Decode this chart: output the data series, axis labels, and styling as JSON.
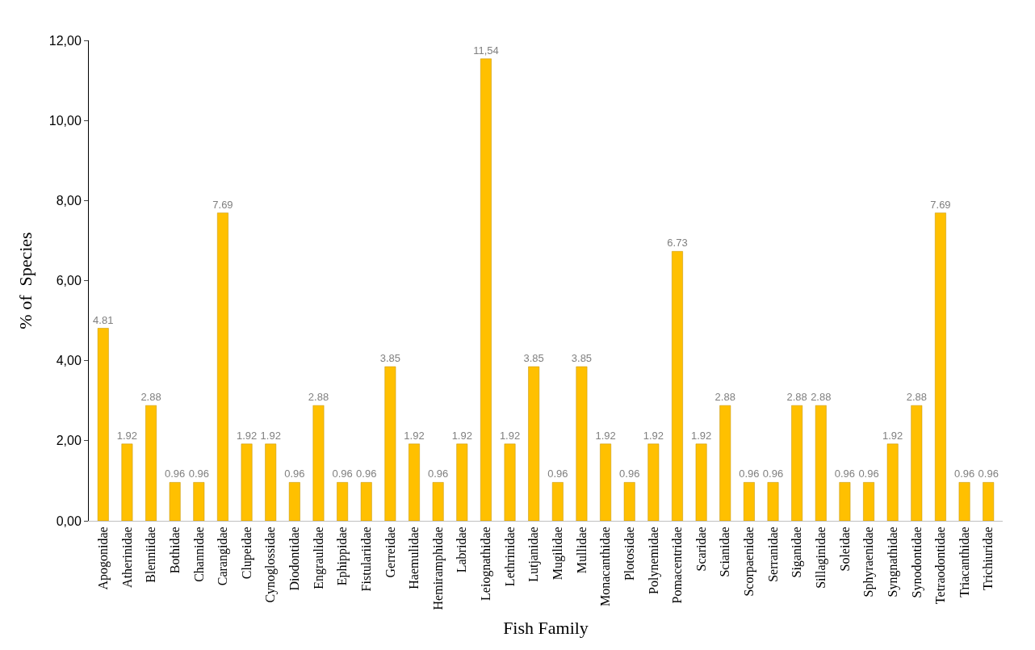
{
  "chart_data": {
    "type": "bar",
    "xlabel": "Fish Family",
    "ylabel": "% of  Species",
    "categories": [
      "Apogonidae",
      "Atherinidae",
      "Blenniidae",
      "Bothidae",
      "Channidae",
      "Carangidae",
      "Clupeidae",
      "Cynoglossidae",
      "Diodontidae",
      "Engraulidae",
      "Ephippidae",
      "Fistulariidae",
      "Gerreidae",
      "Haemulidae",
      "Hemiramphidae",
      "Labridae",
      "Leiognathidae",
      "Lethrinidae",
      "Lutjanidae",
      "Mugilidae",
      "Mullidae",
      "Monacanthidae",
      "Plotosidae",
      "Polynemidae",
      "Pomacentridae",
      "Scaridae",
      "Scianidae",
      "Scorpaenidae",
      "Serranidae",
      "Siganidae",
      "Sillaginidae",
      "Soleidae",
      "Sphyraenidae",
      "Syngnathidae",
      "Synodontidae",
      "Tetraodontidae",
      "Triacanthidae",
      "Trichiuridae"
    ],
    "values": [
      4.81,
      1.92,
      2.88,
      0.96,
      0.96,
      7.69,
      1.92,
      1.92,
      0.96,
      2.88,
      0.96,
      0.96,
      3.85,
      1.92,
      0.96,
      1.92,
      11.54,
      1.92,
      3.85,
      0.96,
      3.85,
      1.92,
      0.96,
      1.92,
      6.73,
      1.92,
      2.88,
      0.96,
      0.96,
      2.88,
      2.88,
      0.96,
      0.96,
      1.92,
      2.88,
      7.69,
      0.96,
      0.96
    ],
    "value_labels": [
      "4.81",
      "1.92",
      "2.88",
      "0.96",
      "0.96",
      "7.69",
      "1.92",
      "1.92",
      "0.96",
      "2.88",
      "0.96",
      "0.96",
      "3.85",
      "1.92",
      "0.96",
      "1.92",
      "11,54",
      "1.92",
      "3.85",
      "0.96",
      "3.85",
      "1.92",
      "0.96",
      "1.92",
      "6.73",
      "1.92",
      "2.88",
      "0.96",
      "0.96",
      "2.88",
      "2.88",
      "0.96",
      "0.96",
      "1.92",
      "2.88",
      "7.69",
      "0.96",
      "0.96"
    ],
    "color": "#ffc000",
    "ylim": [
      0,
      12
    ],
    "yticks": [
      {
        "value": 0,
        "label": "0,00"
      },
      {
        "value": 2,
        "label": "2,00"
      },
      {
        "value": 4,
        "label": "4,00"
      },
      {
        "value": 6,
        "label": "6,00"
      },
      {
        "value": 8,
        "label": "8,00"
      },
      {
        "value": 10,
        "label": "10,00"
      },
      {
        "value": 12,
        "label": "12,00"
      }
    ],
    "legend": false
  }
}
